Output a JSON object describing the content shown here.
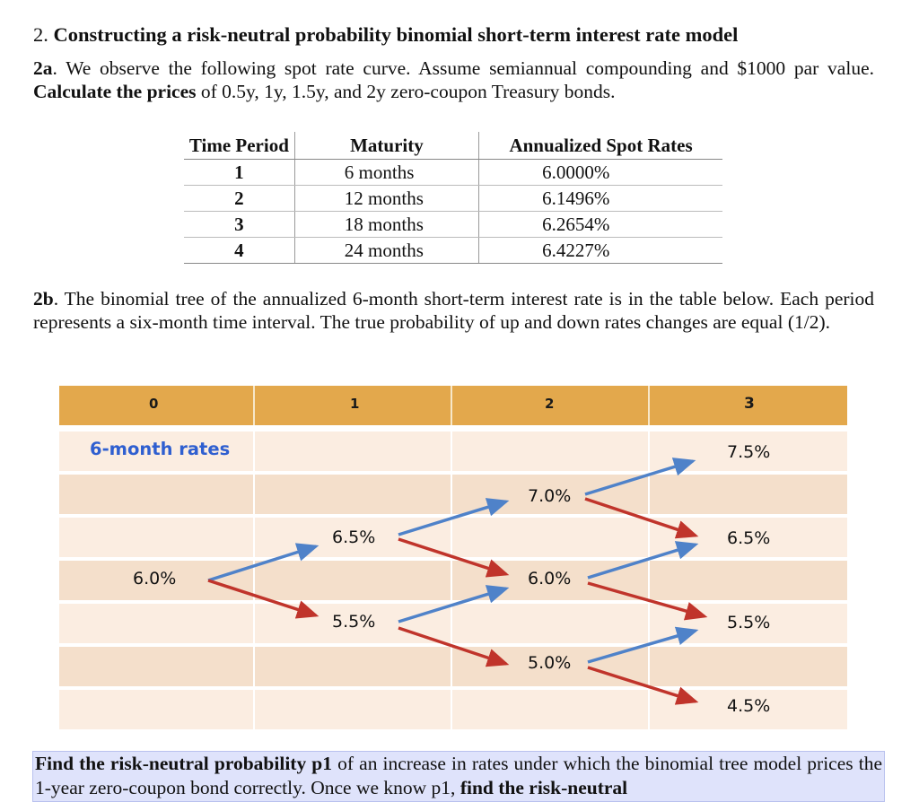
{
  "heading": {
    "number": "2.",
    "title": "Constructing a risk-neutral probability binomial short-term interest rate model"
  },
  "part_a": {
    "label": "2a",
    "text_1": ". We observe the following spot rate curve.  Assume semiannual compounding and $1000 par value.",
    "bold": "Calculate the prices",
    "text_2": "of 0.5y, 1y, 1.5y, and 2y zero-coupon Treasury bonds."
  },
  "spot_table": {
    "headers": [
      "Time Period",
      "Maturity",
      "Annualized Spot Rates"
    ],
    "rows": [
      [
        "1",
        "6 months",
        "6.0000%"
      ],
      [
        "2",
        "12 months",
        "6.1496%"
      ],
      [
        "3",
        "18 months",
        "6.2654%"
      ],
      [
        "4",
        "24 months",
        "6.4227%"
      ]
    ]
  },
  "part_b": {
    "label": "2b",
    "text": ". The binomial tree of the annualized 6-month short-term interest rate is in the table below.  Each period represents a six-month time interval.  The true probability of up and down rates changes are equal (1/2)."
  },
  "tree": {
    "column_headers": [
      "0",
      "1",
      "2",
      "3"
    ],
    "row_label": "6-month rates",
    "rates": {
      "t0": [
        "6.0%"
      ],
      "t1": [
        "6.5%",
        "5.5%"
      ],
      "t2": [
        "7.0%",
        "6.0%",
        "5.0%"
      ],
      "t3": [
        "7.5%",
        "6.5%",
        "5.5%",
        "4.5%"
      ]
    },
    "colors": {
      "header": "#e3a84c",
      "up_arrow": "#4f82c9",
      "down_arrow": "#c0342b",
      "row_label": "#2f5fd0"
    }
  },
  "task": {
    "bold_1": "Find the risk-neutral probability p1",
    "text_1": "of an increase in rates under which the binomial tree model prices the 1-year zero-coupon bond correctly.   Once we know p1,",
    "bold_2": "find the risk-neutral"
  }
}
